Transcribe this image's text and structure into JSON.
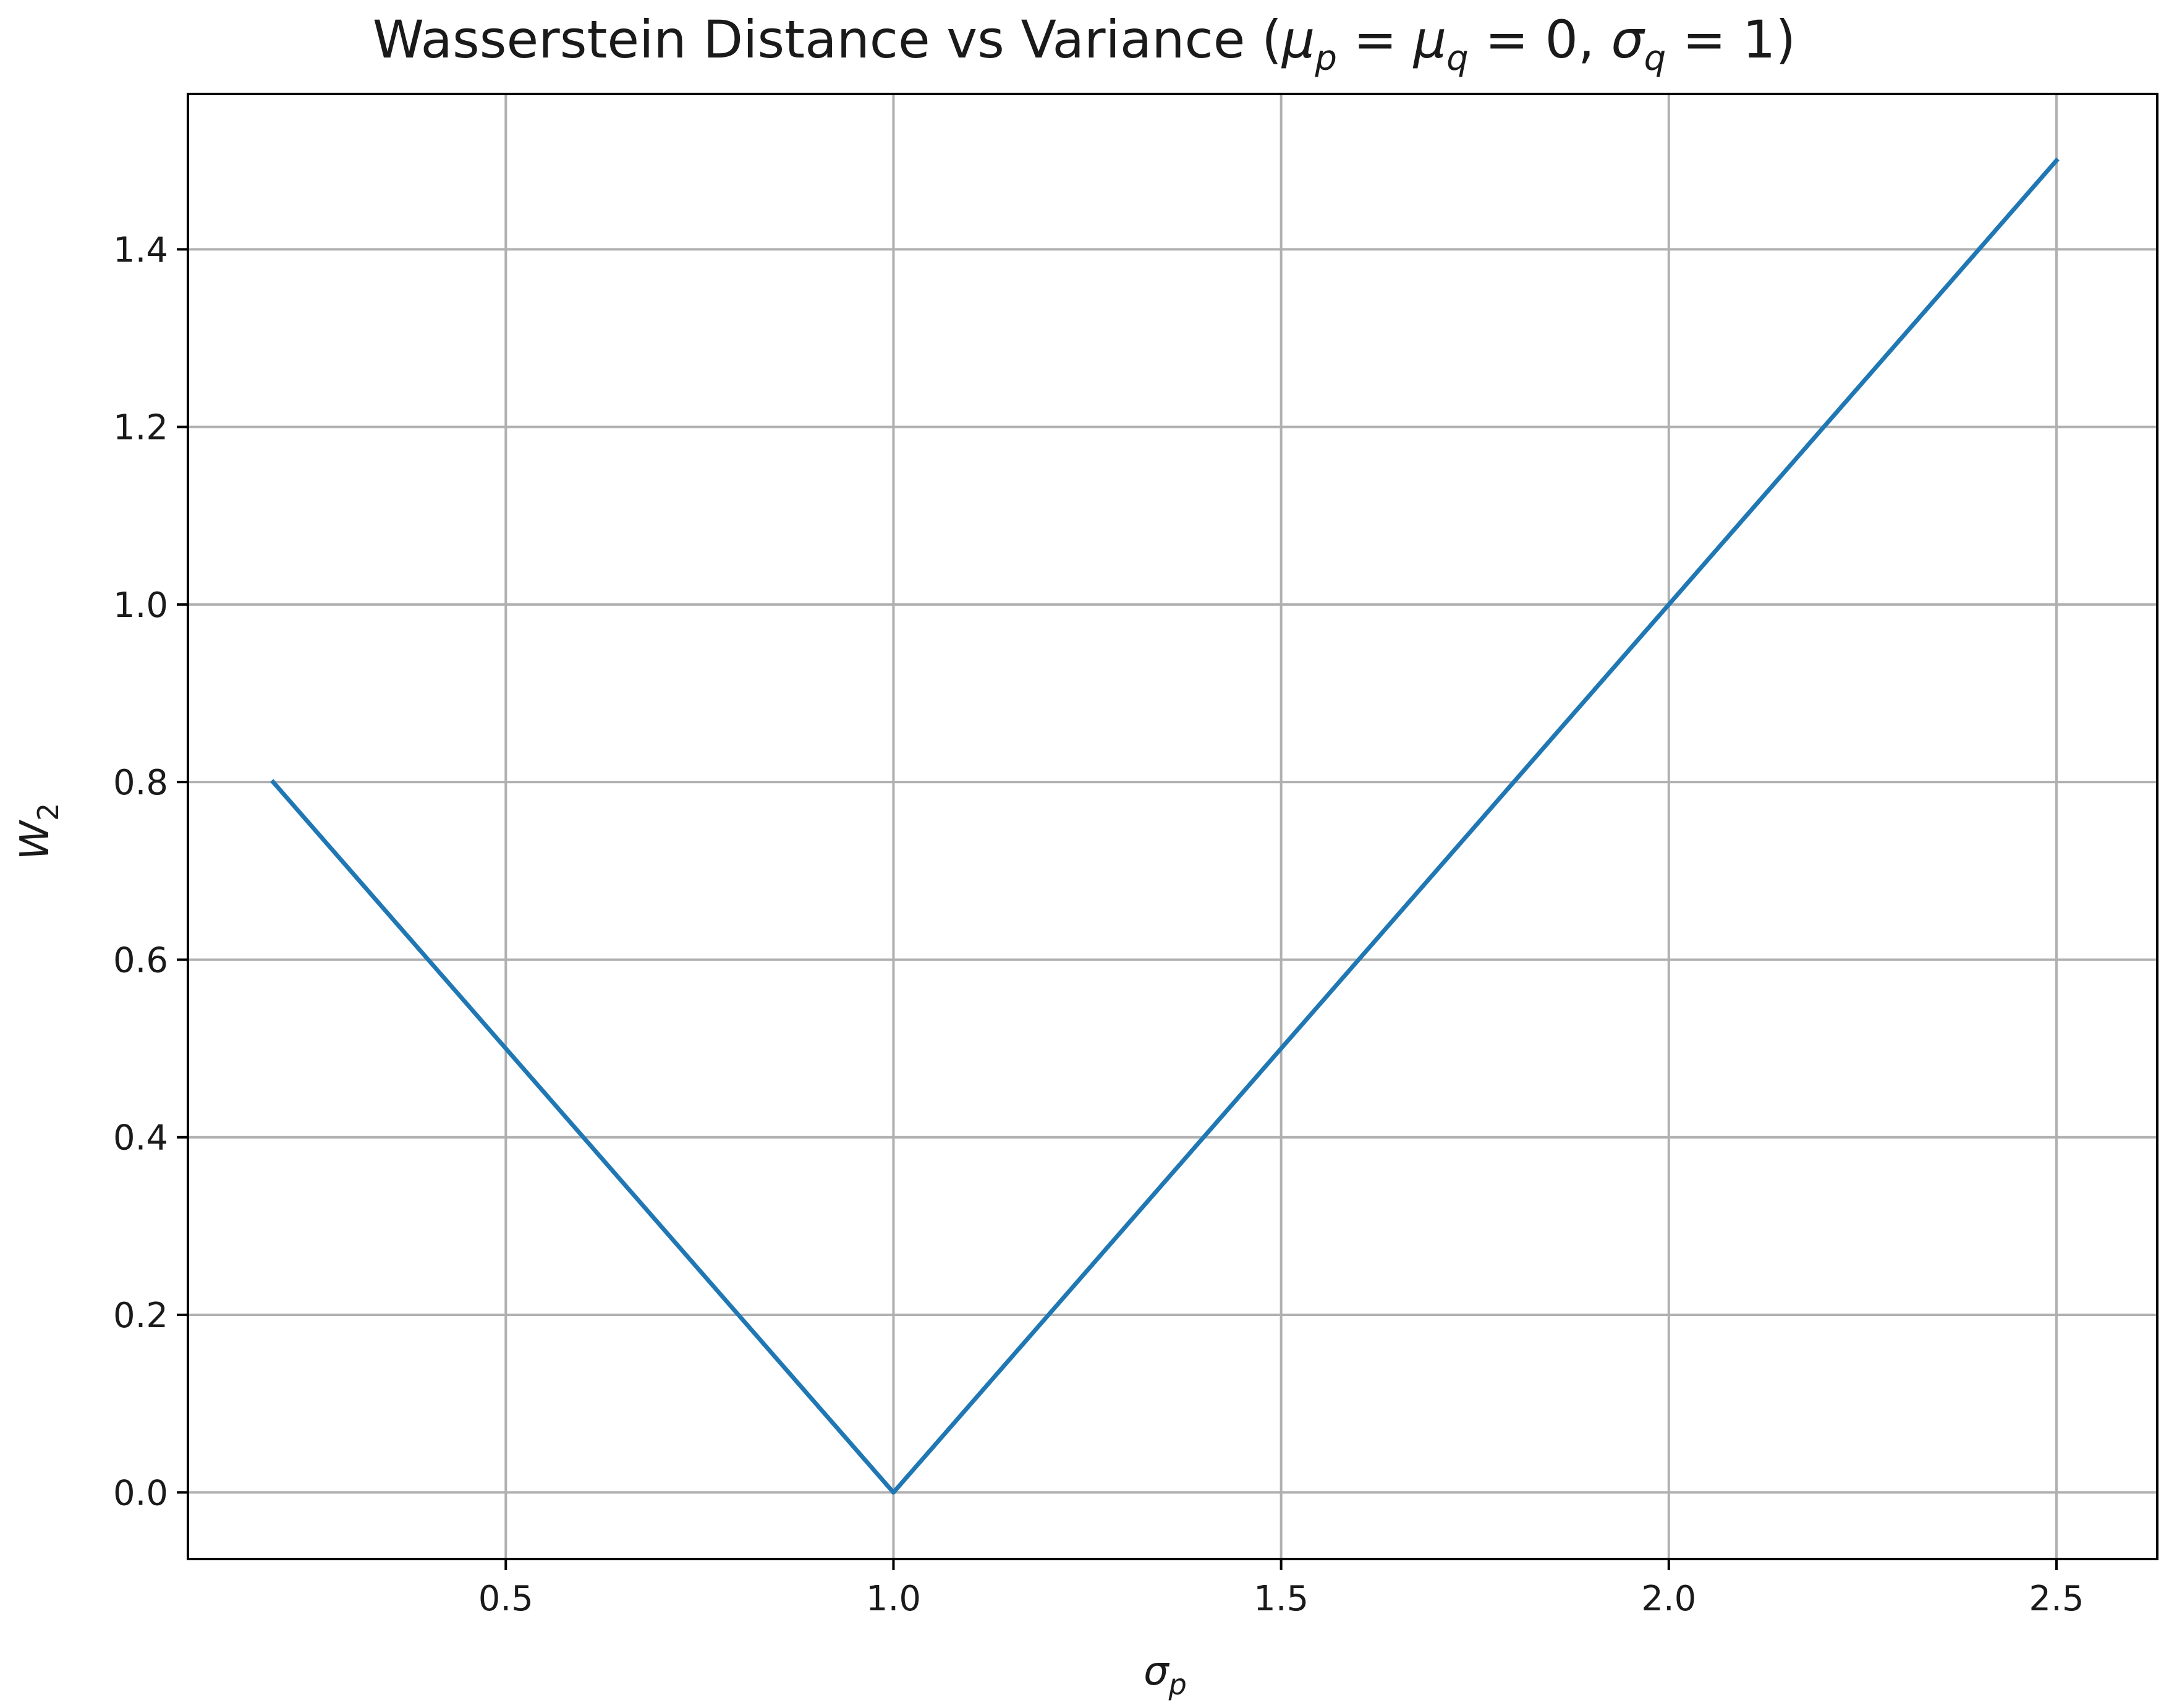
{
  "chart_data": {
    "type": "line",
    "title_parts": {
      "lead": "Wasserstein Distance vs Variance (",
      "mu": "μ",
      "p": "p",
      "q": "q",
      "sigma": "σ",
      "eq": " = ",
      "zero": "0",
      "comma": ", ",
      "one": "1",
      "close": ")"
    },
    "xlabel": {
      "symbol": "σ",
      "sub": "p"
    },
    "ylabel": {
      "symbol": "W",
      "sub": "2"
    },
    "xlim": [
      0.09,
      2.63
    ],
    "ylim": [
      -0.075,
      1.575
    ],
    "x_ticks": [
      0.5,
      1.0,
      1.5,
      2.0,
      2.5
    ],
    "x_tick_labels": [
      "0.5",
      "1.0",
      "1.5",
      "2.0",
      "2.5"
    ],
    "y_ticks": [
      0.0,
      0.2,
      0.4,
      0.6,
      0.8,
      1.0,
      1.2,
      1.4
    ],
    "y_tick_labels": [
      "0.0",
      "0.2",
      "0.4",
      "0.6",
      "0.8",
      "1.0",
      "1.2",
      "1.4"
    ],
    "grid": true,
    "series": [
      {
        "color": "#1f77b4",
        "x": [
          0.2,
          0.4,
          0.6,
          0.8,
          1.0,
          1.2,
          1.4,
          1.6,
          1.8,
          2.0,
          2.2,
          2.4,
          2.5
        ],
        "y": [
          0.8,
          0.6,
          0.4,
          0.2,
          0.0,
          0.2,
          0.4,
          0.6,
          0.8,
          1.0,
          1.2,
          1.4,
          1.5
        ]
      }
    ]
  }
}
